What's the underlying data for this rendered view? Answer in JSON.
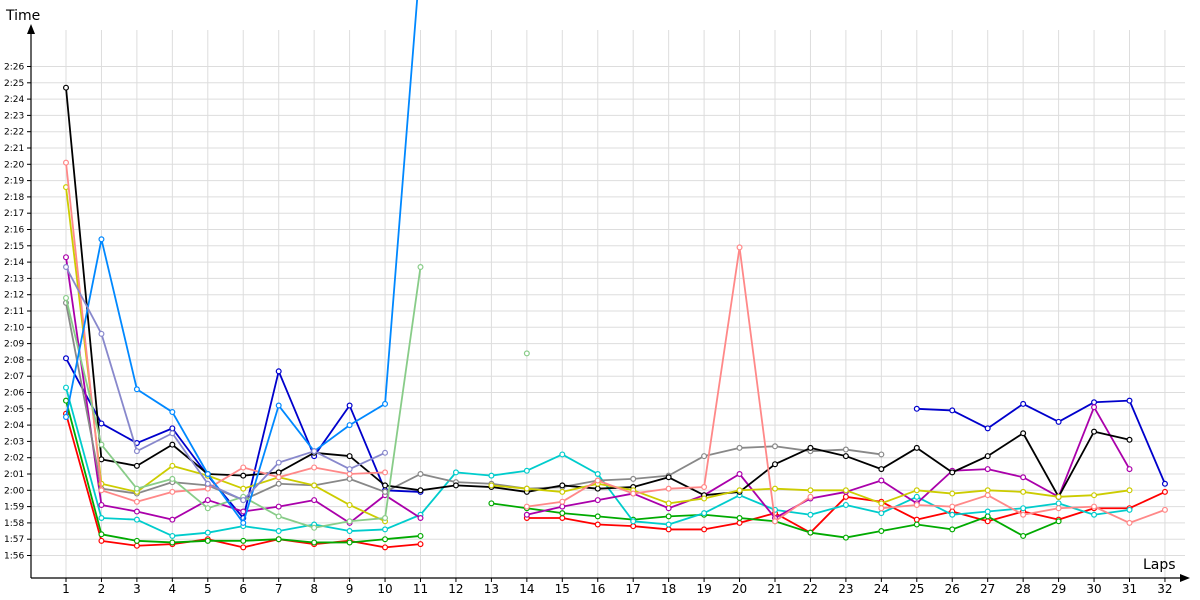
{
  "chart_data": {
    "type": "line",
    "xlabel": "Laps",
    "ylabel": "Time",
    "x": [
      1,
      2,
      3,
      4,
      5,
      6,
      7,
      8,
      9,
      10,
      11,
      12,
      13,
      14,
      15,
      16,
      17,
      18,
      19,
      20,
      21,
      22,
      23,
      24,
      25,
      26,
      27,
      28,
      29,
      30,
      31,
      32
    ],
    "x_tick_labels": [
      "1",
      "2",
      "3",
      "4",
      "5",
      "6",
      "7",
      "8",
      "9",
      "10",
      "11",
      "12",
      "13",
      "14",
      "15",
      "16",
      "17",
      "18",
      "19",
      "20",
      "21",
      "22",
      "23",
      "24",
      "25",
      "26",
      "27",
      "28",
      "29",
      "30",
      "31",
      "32"
    ],
    "y_tick_labels": [
      "1:56",
      "1:57",
      "1:58",
      "1:59",
      "2:00",
      "2:01",
      "2:02",
      "2:03",
      "2:04",
      "2:05",
      "2:06",
      "2:07",
      "2:08",
      "2:09",
      "2:10",
      "2:11",
      "2:12",
      "2:13",
      "2:14",
      "2:15",
      "2:16",
      "2:17",
      "2:18",
      "2:19",
      "2:20",
      "2:21",
      "2:22",
      "2:23",
      "2:24",
      "2:25",
      "2:26"
    ],
    "y_unit": "seconds",
    "ylim": [
      115,
      153
    ],
    "grid": true,
    "legend": "none",
    "series": [
      {
        "color": "#ff0000",
        "values": [
          124.7,
          116.9,
          116.6,
          116.7,
          117.0,
          116.5,
          117.0,
          116.7,
          116.9,
          116.5,
          116.7,
          null,
          null,
          118.3,
          118.3,
          117.9,
          117.8,
          117.6,
          117.6,
          118.0,
          118.6,
          117.4,
          119.6,
          119.3,
          118.2,
          118.7,
          118.1,
          118.7,
          118.2,
          118.9,
          118.9,
          119.9
        ]
      },
      {
        "color": "#00aa00",
        "values": [
          125.5,
          117.3,
          116.9,
          116.8,
          116.9,
          116.9,
          117.0,
          116.8,
          116.8,
          117.0,
          117.2,
          null,
          119.2,
          118.9,
          118.6,
          118.4,
          118.2,
          118.4,
          118.5,
          118.3,
          118.1,
          117.4,
          117.1,
          117.5,
          117.9,
          117.6,
          118.4,
          117.2,
          118.1,
          null,
          null,
          null
        ]
      },
      {
        "color": "#0000cc",
        "values": [
          128.1,
          124.1,
          122.9,
          123.8,
          120.9,
          118.3,
          127.3,
          122.1,
          125.2,
          120.0,
          119.9,
          null,
          null,
          null,
          null,
          null,
          null,
          null,
          null,
          null,
          null,
          null,
          null,
          null,
          125.0,
          124.9,
          123.8,
          125.3,
          124.2,
          125.4,
          125.5,
          120.4
        ]
      },
      {
        "color": "#00cccc",
        "values": [
          126.3,
          118.3,
          118.2,
          117.2,
          117.4,
          117.8,
          117.5,
          117.9,
          117.5,
          117.6,
          118.5,
          121.1,
          120.9,
          121.2,
          122.2,
          121.0,
          118.1,
          117.9,
          118.6,
          119.7,
          118.8,
          118.5,
          119.1,
          118.6,
          119.6,
          118.5,
          118.7,
          118.9,
          119.2,
          118.5,
          118.8,
          null
        ]
      },
      {
        "color": "#aa00aa",
        "values": [
          134.3,
          119.1,
          118.7,
          118.2,
          119.4,
          118.7,
          119.0,
          119.4,
          118.0,
          119.7,
          118.3,
          null,
          null,
          118.5,
          119.0,
          119.4,
          119.8,
          118.9,
          119.7,
          121.0,
          118.3,
          119.5,
          119.9,
          120.6,
          119.2,
          121.2,
          121.3,
          120.8,
          119.6,
          125.1,
          121.3,
          null
        ]
      },
      {
        "color": "#888888",
        "values": [
          131.5,
          120.1,
          119.8,
          120.5,
          120.3,
          119.4,
          120.4,
          120.3,
          120.7,
          119.9,
          121.0,
          120.5,
          120.4,
          120.1,
          120.2,
          120.6,
          120.7,
          120.9,
          122.1,
          122.6,
          122.7,
          122.4,
          122.5,
          122.2,
          null,
          null,
          null,
          null,
          null,
          null,
          null,
          null
        ]
      },
      {
        "color": "#000000",
        "values": [
          144.7,
          121.9,
          121.5,
          122.8,
          121.0,
          120.9,
          121.1,
          122.3,
          122.1,
          120.3,
          120.0,
          120.3,
          120.2,
          119.9,
          120.3,
          120.1,
          120.2,
          120.8,
          119.7,
          119.9,
          121.6,
          122.6,
          122.1,
          121.3,
          122.6,
          121.1,
          122.1,
          123.5,
          119.6,
          123.6,
          123.1,
          null
        ]
      },
      {
        "color": "#cccc00",
        "values": [
          138.6,
          120.4,
          119.9,
          121.5,
          120.9,
          120.1,
          120.8,
          120.3,
          119.1,
          118.1,
          null,
          null,
          120.3,
          120.1,
          119.9,
          120.4,
          120.0,
          119.2,
          119.5,
          120.0,
          120.1,
          120.0,
          120.0,
          119.2,
          120.0,
          119.8,
          120.0,
          119.9,
          119.6,
          119.7,
          120.0,
          null
        ]
      },
      {
        "color": "#ff8888",
        "values": [
          140.1,
          120.0,
          119.3,
          119.9,
          120.1,
          121.4,
          120.8,
          121.4,
          121.0,
          121.1,
          null,
          null,
          null,
          119.0,
          119.3,
          120.6,
          119.8,
          120.1,
          120.2,
          134.9,
          118.1,
          119.6,
          null,
          118.9,
          119.1,
          119.0,
          119.7,
          118.5,
          118.9,
          119.0,
          118.0,
          118.8
        ]
      },
      {
        "color": "#88cc88",
        "values": [
          131.8,
          122.8,
          120.1,
          120.7,
          118.9,
          119.6,
          118.4,
          117.7,
          118.1,
          118.3,
          133.7,
          null,
          null,
          128.4,
          null,
          null,
          null,
          null,
          null,
          null,
          null,
          null,
          null,
          null,
          null,
          null,
          null,
          null,
          null,
          null,
          null,
          null
        ]
      },
      {
        "color": "#0088ff",
        "values": [
          124.5,
          135.4,
          126.2,
          124.8,
          121.0,
          118.0,
          125.2,
          122.4,
          124.0,
          125.3,
          152.7,
          null,
          null,
          null,
          null,
          null,
          null,
          null,
          null,
          null,
          null,
          null,
          null,
          null,
          null,
          null,
          null,
          null,
          null,
          null,
          null,
          null
        ]
      },
      {
        "color": "#8888cc",
        "values": [
          133.7,
          129.6,
          122.4,
          123.5,
          120.4,
          119.4,
          121.7,
          122.4,
          121.3,
          122.3,
          null,
          null,
          null,
          null,
          null,
          null,
          null,
          null,
          null,
          null,
          null,
          null,
          null,
          null,
          null,
          null,
          null,
          null,
          null,
          null,
          null,
          null
        ]
      }
    ]
  }
}
